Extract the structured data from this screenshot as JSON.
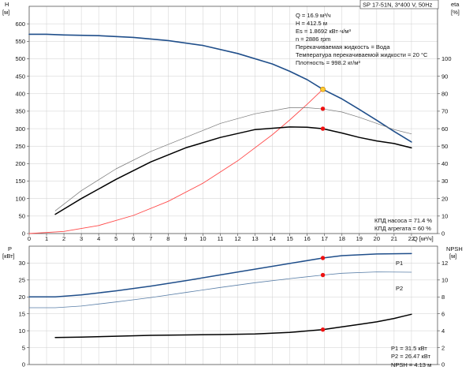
{
  "header_box": "SP 17-51N, 3*400 V, 50Hz",
  "chart_data": [
    {
      "type": "line",
      "axes": {
        "x": {
          "label": "Q [м³/ч]",
          "ticks": [
            0,
            1,
            2,
            3,
            4,
            5,
            6,
            7,
            8,
            9,
            10,
            11,
            12,
            13,
            14,
            15,
            16,
            17,
            18,
            19,
            20,
            21,
            22
          ],
          "range": [
            0,
            23.5
          ]
        },
        "y_left": {
          "label_line1": "H",
          "label_line2": "[м]",
          "ticks": [
            0,
            50,
            100,
            150,
            200,
            250,
            300,
            350,
            400,
            450,
            500,
            550,
            600
          ],
          "range": [
            0,
            650
          ]
        },
        "y_right": {
          "label_line1": "eta",
          "label_line2": "[%]",
          "ticks": [
            0,
            10,
            20,
            30,
            40,
            50,
            60,
            70,
            80,
            90,
            100
          ],
          "range": [
            0,
            130
          ]
        }
      },
      "grid": true,
      "series": [
        {
          "name": "",
          "axis": "left",
          "color": "#1f4e8a",
          "width": 1.6,
          "x": [
            0,
            1,
            2,
            4,
            6,
            8,
            10,
            12,
            14,
            15,
            16,
            16.9,
            18,
            19,
            20,
            21,
            22
          ],
          "y": [
            570,
            570,
            568,
            566,
            561,
            552,
            538,
            515,
            485,
            464,
            440,
            412.5,
            385,
            355,
            324,
            292,
            262
          ]
        },
        {
          "name": "",
          "axis": "left",
          "color": "#ff4a4a",
          "width": 0.9,
          "x": [
            0,
            2,
            4,
            6,
            8,
            10,
            12,
            14,
            15,
            16,
            16.9
          ],
          "y": [
            0,
            6,
            23,
            52,
            92,
            144,
            208,
            283,
            325,
            370,
            412.5
          ]
        },
        {
          "name": "",
          "axis": "right",
          "color": "#777777",
          "width": 0.7,
          "x": [
            1.5,
            3,
            5,
            7,
            9,
            11,
            13,
            15,
            16,
            17,
            18,
            19,
            20,
            21,
            22
          ],
          "y": [
            13,
            24.5,
            37,
            47,
            55,
            63,
            68.5,
            72,
            72,
            71.2,
            69.5,
            66.5,
            63,
            59.5,
            57
          ]
        },
        {
          "name": "",
          "axis": "right",
          "color": "#000000",
          "width": 1.5,
          "x": [
            1.5,
            3,
            5,
            7,
            9,
            11,
            13,
            15,
            16,
            16.9,
            18,
            19,
            20,
            21,
            22
          ],
          "y": [
            11,
            20,
            31,
            41,
            49,
            55,
            59.5,
            61,
            60.8,
            60,
            57.5,
            55,
            53,
            51.5,
            49
          ]
        }
      ],
      "points": [
        {
          "axis": "left",
          "x": 16.9,
          "y": 412.5,
          "color": "#ffcc33",
          "stroke": "#cc8800",
          "r": 3
        },
        {
          "axis": "right",
          "x": 16.9,
          "y": 71.4,
          "color": "#ee1111",
          "stroke": "#ee1111",
          "r": 2.3
        },
        {
          "axis": "right",
          "x": 16.9,
          "y": 60,
          "color": "#ee1111",
          "stroke": "#ee1111",
          "r": 2.3
        }
      ],
      "info_lines": [
        "Q = 16.9 м³/ч",
        "H = 412.5 м",
        "Es = 1.8692 кВт·ч/м³",
        "n = 2886 rpm",
        "Перекачиваемая жидкость = Вода",
        "Температура перекачиваемой жидкости = 20 °C",
        "Плотность = 998.2 кг/м³"
      ],
      "efficiency_lines": [
        "КПД насоса = 71.4 %",
        "КПД агрегата = 60 %"
      ]
    },
    {
      "type": "line",
      "axes": {
        "y_left": {
          "label_line1": "P",
          "label_line2": "[кВт]",
          "ticks": [
            0,
            5,
            10,
            15,
            20,
            25,
            30
          ],
          "range": [
            0,
            35
          ]
        },
        "y_right": {
          "label_line1": "NPSH",
          "label_line2": "[м]",
          "ticks": [
            0,
            2,
            4,
            6,
            8,
            10,
            12
          ],
          "range": [
            0,
            14
          ]
        }
      },
      "grid": true,
      "series": [
        {
          "name": "P1",
          "axis": "left",
          "color": "#1f4e8a",
          "width": 1.5,
          "x": [
            0,
            1.5,
            3,
            5,
            7,
            9,
            11,
            13,
            15,
            16.9,
            18,
            20,
            22
          ],
          "y": [
            20,
            20,
            20.6,
            21.8,
            23.2,
            24.8,
            26.5,
            28.2,
            29.9,
            31.5,
            32.2,
            32.7,
            32.8
          ]
        },
        {
          "name": "P2",
          "axis": "left",
          "color": "#5a7fa8",
          "width": 0.8,
          "x": [
            0,
            1.5,
            3,
            5,
            7,
            9,
            11,
            13,
            15,
            16.9,
            18,
            20,
            22
          ],
          "y": [
            16.8,
            16.8,
            17.3,
            18.5,
            19.8,
            21.3,
            22.8,
            24.2,
            25.4,
            26.47,
            27,
            27.4,
            27.3
          ]
        },
        {
          "name": "",
          "axis": "right",
          "color": "#000000",
          "width": 1.5,
          "x": [
            1.5,
            3,
            5,
            7,
            9,
            11,
            13,
            15,
            16.9,
            18,
            19,
            20,
            21,
            22
          ],
          "y": [
            3.2,
            3.25,
            3.35,
            3.45,
            3.5,
            3.55,
            3.62,
            3.8,
            4.13,
            4.45,
            4.75,
            5.05,
            5.45,
            5.95
          ]
        }
      ],
      "points": [
        {
          "axis": "left",
          "x": 16.9,
          "y": 31.5,
          "color": "#ee1111",
          "stroke": "#ee1111",
          "r": 2.3
        },
        {
          "axis": "left",
          "x": 16.9,
          "y": 26.47,
          "color": "#ee1111",
          "stroke": "#ee1111",
          "r": 2.3
        },
        {
          "axis": "right",
          "x": 16.9,
          "y": 4.13,
          "color": "#ee1111",
          "stroke": "#ee1111",
          "r": 2.3
        }
      ],
      "result_lines": [
        "P1 = 31.5 кВт",
        "P2 = 26.47 кВт",
        "NPSH = 4.13 м"
      ]
    }
  ]
}
